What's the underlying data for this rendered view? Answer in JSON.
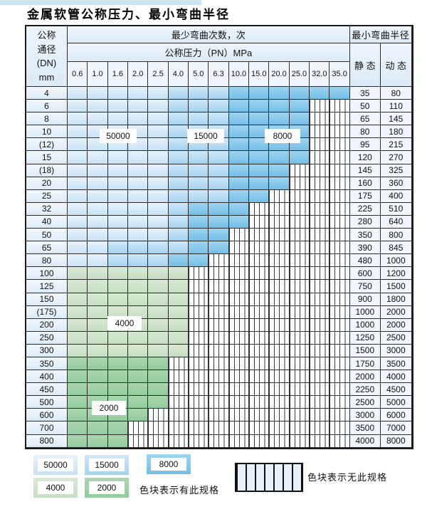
{
  "page": {
    "title": "金属软管公称压力、最小弯曲半径"
  },
  "table": {
    "header": {
      "dn_lines": [
        "公称",
        "通径",
        "(DN)",
        "mm"
      ],
      "cycles_label": "最少弯曲次数，次",
      "pressure_label": "公称压力（PN）MPa",
      "radius_label": "最小弯曲半径",
      "static_label": "静 态",
      "dynamic_label": "动 态",
      "pressures": [
        "0.6",
        "1.0",
        "1.6",
        "2.0",
        "2.5",
        "4.0",
        "5.0",
        "6.3",
        "10.0",
        "15.0",
        "20.0",
        "25.0",
        "32.0",
        "35.0"
      ]
    },
    "zone_legend_map": {
      "5": "50000",
      "1": "15000",
      "8": "8000",
      "4": "4000",
      "2": "2000",
      "h": "no-spec"
    },
    "rows": [
      {
        "dn": "4",
        "zones": "55555111888888",
        "static": "35",
        "dynamic": "80"
      },
      {
        "dn": "6",
        "zones": "555551118888hh",
        "static": "50",
        "dynamic": "110"
      },
      {
        "dn": "8",
        "zones": "555551118888hh",
        "static": "65",
        "dynamic": "145"
      },
      {
        "dn": "10",
        "zones": "555551118888hh",
        "static": "80",
        "dynamic": "180"
      },
      {
        "dn": "(12)",
        "zones": "555551118888hh",
        "static": "95",
        "dynamic": "215"
      },
      {
        "dn": "15",
        "zones": "555551118888hh",
        "static": "120",
        "dynamic": "270"
      },
      {
        "dn": "(18)",
        "zones": "55555111888hhh",
        "static": "145",
        "dynamic": "325"
      },
      {
        "dn": "20",
        "zones": "55555111888hhh",
        "static": "160",
        "dynamic": "360"
      },
      {
        "dn": "25",
        "zones": "5555511188hhhh",
        "static": "175",
        "dynamic": "400"
      },
      {
        "dn": "32",
        "zones": "555551888hhhhh",
        "static": "225",
        "dynamic": "510"
      },
      {
        "dn": "40",
        "zones": "555551888hhhhh",
        "static": "280",
        "dynamic": "640"
      },
      {
        "dn": "50",
        "zones": "55555188hhhhhh",
        "static": "350",
        "dynamic": "800"
      },
      {
        "dn": "65",
        "zones": "55111188hhhhhh",
        "static": "390",
        "dynamic": "845"
      },
      {
        "dn": "80",
        "zones": "5511188hhhhhhh",
        "static": "480",
        "dynamic": "1000"
      },
      {
        "dn": "100",
        "zones": "444444hhhhhhhh",
        "static": "600",
        "dynamic": "1200"
      },
      {
        "dn": "125",
        "zones": "444444hhhhhhhh",
        "static": "750",
        "dynamic": "1500"
      },
      {
        "dn": "150",
        "zones": "444444hhhhhhhh",
        "static": "900",
        "dynamic": "1800"
      },
      {
        "dn": "(175)",
        "zones": "444444hhhhhhhh",
        "static": "1000",
        "dynamic": "2000"
      },
      {
        "dn": "200",
        "zones": "444444hhhhhhhh",
        "static": "1000",
        "dynamic": "2000"
      },
      {
        "dn": "250",
        "zones": "444444hhhhhhhh",
        "static": "1250",
        "dynamic": "2500"
      },
      {
        "dn": "300",
        "zones": "444444hhhhhhhh",
        "static": "1500",
        "dynamic": "3000"
      },
      {
        "dn": "350",
        "zones": "22222hhhhhhhhh",
        "static": "1750",
        "dynamic": "3500"
      },
      {
        "dn": "400",
        "zones": "22222hhhhhhhhh",
        "static": "2000",
        "dynamic": "4000"
      },
      {
        "dn": "450",
        "zones": "22222hhhhhhhhh",
        "static": "2250",
        "dynamic": "4500"
      },
      {
        "dn": "500",
        "zones": "22222hhhhhhhhh",
        "static": "2500",
        "dynamic": "5000"
      },
      {
        "dn": "600",
        "zones": "2222hhhhhhhhhh",
        "static": "3000",
        "dynamic": "6000"
      },
      {
        "dn": "700",
        "zones": "222hhhhhhhhhhh",
        "static": "3500",
        "dynamic": "7000"
      },
      {
        "dn": "800",
        "zones": "222hhhhhhhhhhh",
        "static": "4000",
        "dynamic": "8000"
      }
    ]
  },
  "overlay_chips": [
    {
      "text": "50000"
    },
    {
      "text": "15000"
    },
    {
      "text": "8000"
    },
    {
      "text": "4000"
    },
    {
      "text": "2000"
    }
  ],
  "legend": {
    "swatches": [
      {
        "label": "50000",
        "zone": "z5"
      },
      {
        "label": "15000",
        "zone": "z1"
      },
      {
        "label": "8000",
        "zone": "z8"
      },
      {
        "label": "4000",
        "zone": "z4"
      },
      {
        "label": "2000",
        "zone": "z2"
      }
    ],
    "has_spec_note": "色块表示有此规格",
    "no_spec_note": "色块表示无此规格"
  },
  "colors": {
    "zone_50000": "#c8e2f4",
    "zone_15000": "#a4d2ef",
    "zone_8000": "#74bfe7",
    "zone_4000": "#c7ddc3",
    "zone_2000": "#93cb9e",
    "header_bg": "#dcebf7",
    "top_strip": "#cfe3f2"
  }
}
